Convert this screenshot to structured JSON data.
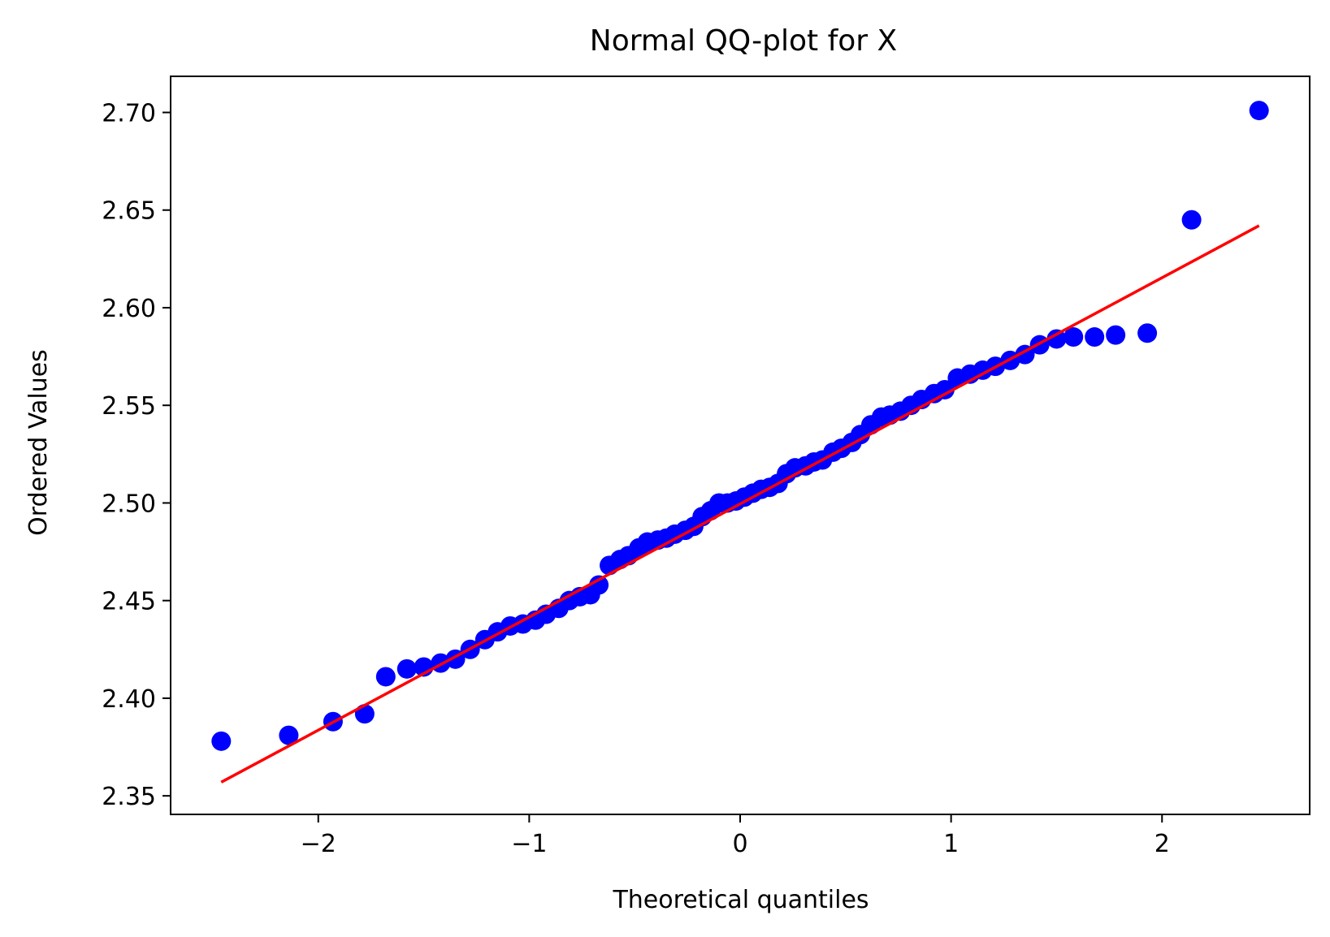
{
  "chart_data": {
    "type": "scatter",
    "title": "Normal QQ-plot for X",
    "xlabel": "Theoretical quantiles",
    "ylabel": "Ordered Values",
    "xlim": [
      -2.7,
      2.7
    ],
    "ylim": [
      2.3405,
      2.7185
    ],
    "xticks": [
      -2,
      -1,
      0,
      1,
      2
    ],
    "xtick_labels": [
      "−2",
      "−1",
      "0",
      "1",
      "2"
    ],
    "yticks": [
      2.35,
      2.4,
      2.45,
      2.5,
      2.55,
      2.6,
      2.65,
      2.7
    ],
    "ytick_labels": [
      "2.35",
      "2.40",
      "2.45",
      "2.50",
      "2.55",
      "2.60",
      "2.65",
      "2.70"
    ],
    "grid": false,
    "legend": "none",
    "colors": {
      "points": "#0000ff",
      "fit_line": "#ff0000",
      "axes": "#000000"
    },
    "series": [
      {
        "kind": "points",
        "x": [
          -2.46,
          -2.14,
          -1.93,
          -1.78,
          -1.68,
          -1.58,
          -1.5,
          -1.42,
          -1.35,
          -1.28,
          -1.21,
          -1.15,
          -1.09,
          -1.03,
          -0.97,
          -0.92,
          -0.86,
          -0.81,
          -0.76,
          -0.71,
          -0.67,
          -0.62,
          -0.57,
          -0.53,
          -0.48,
          -0.44,
          -0.39,
          -0.35,
          -0.31,
          -0.26,
          -0.22,
          -0.18,
          -0.14,
          -0.1,
          -0.06,
          -0.02,
          0.02,
          0.06,
          0.1,
          0.14,
          0.18,
          0.22,
          0.26,
          0.31,
          0.35,
          0.39,
          0.44,
          0.48,
          0.53,
          0.57,
          0.62,
          0.67,
          0.71,
          0.76,
          0.81,
          0.86,
          0.92,
          0.97,
          1.03,
          1.09,
          1.15,
          1.21,
          1.28,
          1.35,
          1.42,
          1.5,
          1.58,
          1.68,
          1.78,
          1.93,
          2.14,
          2.46
        ],
        "y": [
          2.378,
          2.381,
          2.388,
          2.392,
          2.411,
          2.415,
          2.416,
          2.418,
          2.42,
          2.425,
          2.43,
          2.434,
          2.437,
          2.438,
          2.44,
          2.443,
          2.446,
          2.45,
          2.452,
          2.453,
          2.458,
          2.468,
          2.471,
          2.473,
          2.477,
          2.48,
          2.481,
          2.482,
          2.484,
          2.486,
          2.488,
          2.493,
          2.496,
          2.5,
          2.5,
          2.501,
          2.503,
          2.505,
          2.507,
          2.508,
          2.51,
          2.515,
          2.518,
          2.519,
          2.521,
          2.522,
          2.526,
          2.528,
          2.531,
          2.535,
          2.54,
          2.544,
          2.545,
          2.547,
          2.55,
          2.553,
          2.556,
          2.558,
          2.564,
          2.566,
          2.568,
          2.57,
          2.573,
          2.576,
          2.581,
          2.584,
          2.585,
          2.585,
          2.586,
          2.587,
          2.645,
          2.701
        ]
      },
      {
        "kind": "fit_line",
        "x": [
          -2.46,
          2.46
        ],
        "y": [
          2.357,
          2.642
        ]
      }
    ]
  }
}
